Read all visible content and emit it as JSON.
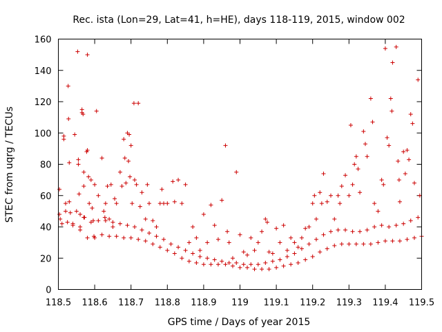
{
  "chart_data": {
    "type": "scatter",
    "title": "Rec. ista (Lon=29, Lat=41, h=HE), days 118-119, 2015, window 002",
    "xlabel": "GPS time / Days of year 2015",
    "ylabel": "STEC from uqrg / TECUs",
    "xlim": [
      118.5,
      119.5
    ],
    "ylim": [
      0,
      160
    ],
    "x_ticks": [
      "118.5",
      "118.6",
      "118.7",
      "118.8",
      "118.9",
      "119",
      "119.1",
      "119.2",
      "119.3",
      "119.4",
      "119.5"
    ],
    "y_ticks": [
      "0",
      "20",
      "40",
      "60",
      "80",
      "100",
      "120",
      "140",
      "160"
    ],
    "grid": false,
    "marker": "+",
    "color": "#cc0000",
    "series": [
      {
        "points": [
          [
            118.503,
            64
          ],
          [
            118.503,
            48
          ],
          [
            118.505,
            45
          ],
          [
            118.515,
            96
          ],
          [
            118.515,
            98
          ],
          [
            118.52,
            55
          ],
          [
            118.525,
            43
          ],
          [
            118.527,
            130
          ],
          [
            118.528,
            109
          ],
          [
            118.53,
            81
          ],
          [
            118.53,
            56
          ],
          [
            118.533,
            49
          ],
          [
            118.54,
            42
          ],
          [
            118.545,
            99
          ],
          [
            118.553,
            152
          ],
          [
            118.555,
            83
          ],
          [
            118.555,
            80
          ],
          [
            118.557,
            61
          ],
          [
            118.56,
            48
          ],
          [
            118.56,
            38
          ],
          [
            118.565,
            115
          ],
          [
            118.565,
            113
          ],
          [
            118.568,
            112
          ],
          [
            118.57,
            75
          ],
          [
            118.57,
            66
          ],
          [
            118.572,
            46
          ],
          [
            118.578,
            88
          ],
          [
            118.58,
            89
          ],
          [
            118.58,
            150
          ],
          [
            118.583,
            72
          ],
          [
            118.585,
            55
          ],
          [
            118.59,
            70
          ],
          [
            118.593,
            52
          ],
          [
            118.596,
            44
          ],
          [
            118.598,
            34
          ],
          [
            118.605,
            114
          ],
          [
            118.6,
            67
          ],
          [
            118.61,
            60
          ],
          [
            118.62,
            84
          ],
          [
            118.625,
            50
          ],
          [
            118.628,
            46
          ],
          [
            118.63,
            55
          ],
          [
            118.635,
            66
          ],
          [
            118.64,
            45
          ],
          [
            118.645,
            67
          ],
          [
            118.65,
            40
          ],
          [
            118.655,
            58
          ],
          [
            118.66,
            55
          ],
          [
            118.67,
            75
          ],
          [
            118.675,
            66
          ],
          [
            118.68,
            96
          ],
          [
            118.683,
            84
          ],
          [
            118.686,
            68
          ],
          [
            118.69,
            100
          ],
          [
            118.693,
            82
          ],
          [
            118.695,
            99
          ],
          [
            118.697,
            72
          ],
          [
            118.7,
            92
          ],
          [
            118.703,
            55
          ],
          [
            118.708,
            119
          ],
          [
            118.71,
            70
          ],
          [
            118.715,
            67
          ],
          [
            118.72,
            119
          ],
          [
            118.725,
            53
          ],
          [
            118.73,
            62
          ],
          [
            118.74,
            45
          ],
          [
            118.745,
            67
          ],
          [
            118.75,
            55
          ],
          [
            118.76,
            44
          ],
          [
            118.77,
            40
          ],
          [
            118.78,
            55
          ],
          [
            118.785,
            64
          ],
          [
            118.79,
            55
          ],
          [
            118.8,
            55
          ],
          [
            118.815,
            69
          ],
          [
            118.82,
            56
          ],
          [
            118.83,
            70
          ],
          [
            118.84,
            55
          ],
          [
            118.85,
            67
          ],
          [
            118.86,
            30
          ],
          [
            118.87,
            40
          ],
          [
            118.88,
            33
          ],
          [
            118.89,
            25
          ],
          [
            118.9,
            48
          ],
          [
            118.91,
            30
          ],
          [
            118.92,
            54
          ],
          [
            118.93,
            41
          ],
          [
            118.94,
            32
          ],
          [
            118.95,
            57
          ],
          [
            118.96,
            92
          ],
          [
            118.965,
            37
          ],
          [
            118.97,
            30
          ],
          [
            118.98,
            20
          ],
          [
            118.99,
            75
          ],
          [
            119.0,
            35
          ],
          [
            119.01,
            24
          ],
          [
            119.02,
            22
          ],
          [
            119.03,
            33
          ],
          [
            119.04,
            25
          ],
          [
            119.05,
            30
          ],
          [
            119.06,
            37
          ],
          [
            119.07,
            45
          ],
          [
            119.075,
            43
          ],
          [
            119.08,
            24
          ],
          [
            119.09,
            23
          ],
          [
            119.1,
            39
          ],
          [
            119.11,
            30
          ],
          [
            119.12,
            41
          ],
          [
            119.13,
            25
          ],
          [
            119.14,
            33
          ],
          [
            119.15,
            30
          ],
          [
            119.16,
            27
          ],
          [
            119.17,
            33
          ],
          [
            119.18,
            39
          ],
          [
            119.19,
            40
          ],
          [
            119.2,
            55
          ],
          [
            119.205,
            60
          ],
          [
            119.21,
            45
          ],
          [
            119.22,
            62
          ],
          [
            119.225,
            55
          ],
          [
            119.23,
            74
          ],
          [
            119.24,
            56
          ],
          [
            119.25,
            60
          ],
          [
            119.26,
            45
          ],
          [
            119.27,
            60
          ],
          [
            119.275,
            55
          ],
          [
            119.28,
            66
          ],
          [
            119.29,
            73
          ],
          [
            119.3,
            60
          ],
          [
            119.305,
            105
          ],
          [
            119.31,
            67
          ],
          [
            119.315,
            80
          ],
          [
            119.32,
            85
          ],
          [
            119.325,
            77
          ],
          [
            119.33,
            62
          ],
          [
            119.34,
            101
          ],
          [
            119.345,
            93
          ],
          [
            119.35,
            85
          ],
          [
            119.36,
            122
          ],
          [
            119.365,
            107
          ],
          [
            119.37,
            55
          ],
          [
            119.38,
            50
          ],
          [
            119.39,
            70
          ],
          [
            119.395,
            67
          ],
          [
            119.4,
            154
          ],
          [
            119.405,
            97
          ],
          [
            119.41,
            92
          ],
          [
            119.415,
            122
          ],
          [
            119.418,
            114
          ],
          [
            119.42,
            145
          ],
          [
            119.43,
            155
          ],
          [
            119.435,
            82
          ],
          [
            119.438,
            70
          ],
          [
            119.44,
            56
          ],
          [
            119.45,
            88
          ],
          [
            119.455,
            74
          ],
          [
            119.46,
            89
          ],
          [
            119.465,
            83
          ],
          [
            119.47,
            112
          ],
          [
            119.475,
            106
          ],
          [
            119.48,
            68
          ],
          [
            119.49,
            134
          ],
          [
            119.495,
            60
          ],
          [
            118.51,
            42
          ],
          [
            118.54,
            41
          ],
          [
            118.56,
            40
          ],
          [
            118.58,
            33
          ],
          [
            118.6,
            33
          ],
          [
            118.62,
            35
          ],
          [
            118.64,
            34
          ],
          [
            118.66,
            34
          ],
          [
            118.68,
            33
          ],
          [
            118.7,
            33
          ],
          [
            118.72,
            32
          ],
          [
            118.74,
            31
          ],
          [
            118.76,
            29
          ],
          [
            118.78,
            27
          ],
          [
            118.8,
            25
          ],
          [
            118.82,
            23
          ],
          [
            118.84,
            20
          ],
          [
            118.86,
            18
          ],
          [
            118.88,
            17
          ],
          [
            118.9,
            16
          ],
          [
            118.92,
            16
          ],
          [
            118.94,
            16
          ],
          [
            118.96,
            16
          ],
          [
            118.98,
            15
          ],
          [
            119.0,
            14
          ],
          [
            119.02,
            14
          ],
          [
            119.04,
            13
          ],
          [
            119.06,
            13
          ],
          [
            119.08,
            13
          ],
          [
            119.1,
            14
          ],
          [
            119.12,
            15
          ],
          [
            119.14,
            16
          ],
          [
            119.16,
            17
          ],
          [
            119.18,
            19
          ],
          [
            119.2,
            21
          ],
          [
            119.22,
            24
          ],
          [
            119.24,
            26
          ],
          [
            119.26,
            28
          ],
          [
            119.28,
            29
          ],
          [
            119.3,
            29
          ],
          [
            119.32,
            29
          ],
          [
            119.34,
            29
          ],
          [
            119.36,
            29
          ],
          [
            119.38,
            30
          ],
          [
            119.4,
            31
          ],
          [
            119.42,
            31
          ],
          [
            119.44,
            31
          ],
          [
            119.46,
            32
          ],
          [
            119.48,
            33
          ],
          [
            119.5,
            34
          ],
          [
            118.52,
            50
          ],
          [
            118.55,
            50
          ],
          [
            118.57,
            46
          ],
          [
            118.59,
            43
          ],
          [
            118.61,
            44
          ],
          [
            118.63,
            44
          ],
          [
            118.65,
            43
          ],
          [
            118.67,
            42
          ],
          [
            118.69,
            41
          ],
          [
            118.71,
            40
          ],
          [
            118.73,
            38
          ],
          [
            118.75,
            36
          ],
          [
            118.77,
            34
          ],
          [
            118.79,
            32
          ],
          [
            118.81,
            29
          ],
          [
            118.83,
            27
          ],
          [
            118.85,
            25
          ],
          [
            118.87,
            23
          ],
          [
            118.89,
            21
          ],
          [
            118.91,
            20
          ],
          [
            118.93,
            19
          ],
          [
            118.95,
            18
          ],
          [
            118.97,
            17
          ],
          [
            118.99,
            17
          ],
          [
            119.01,
            16
          ],
          [
            119.03,
            16
          ],
          [
            119.05,
            16
          ],
          [
            119.07,
            17
          ],
          [
            119.09,
            18
          ],
          [
            119.11,
            19
          ],
          [
            119.13,
            21
          ],
          [
            119.15,
            23
          ],
          [
            119.17,
            26
          ],
          [
            119.19,
            29
          ],
          [
            119.21,
            32
          ],
          [
            119.23,
            35
          ],
          [
            119.25,
            37
          ],
          [
            119.27,
            38
          ],
          [
            119.29,
            38
          ],
          [
            119.31,
            37
          ],
          [
            119.33,
            37
          ],
          [
            119.35,
            38
          ],
          [
            119.37,
            40
          ],
          [
            119.39,
            41
          ],
          [
            119.41,
            40
          ],
          [
            119.43,
            41
          ],
          [
            119.45,
            42
          ],
          [
            119.47,
            44
          ],
          [
            119.49,
            46
          ]
        ]
      }
    ]
  }
}
